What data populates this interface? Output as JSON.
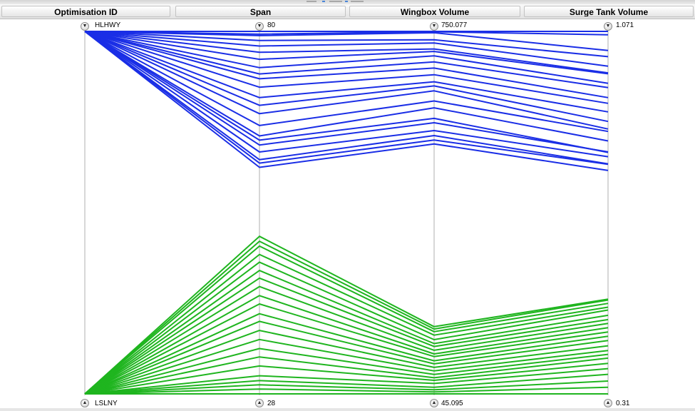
{
  "headers": [
    "Optimisation ID",
    "Span",
    "Wingbox Volume",
    "Surge Tank Volume"
  ],
  "axes": [
    {
      "top_label": "HLHWY",
      "bottom_label": "LSLNY"
    },
    {
      "top_label": "80",
      "bottom_label": "28"
    },
    {
      "top_label": "750.077",
      "bottom_label": "45.095"
    },
    {
      "top_label": "1.071",
      "bottom_label": "0.31"
    }
  ],
  "icons": {
    "top": "chevron-down-icon",
    "bottom": "chevron-up-icon"
  },
  "colors": {
    "top_group": "#1a2ee6",
    "bottom_group": "#1fb51f"
  },
  "chart_data": {
    "type": "parallel-coordinates",
    "dimensions": [
      {
        "name": "Optimisation ID",
        "categories": [
          "LSLNY",
          "HLHWY"
        ]
      },
      {
        "name": "Span",
        "range": [
          28,
          80
        ]
      },
      {
        "name": "Wingbox Volume",
        "range": [
          45.095,
          750.077
        ]
      },
      {
        "name": "Surge Tank Volume",
        "range": [
          0.31,
          1.071
        ]
      }
    ],
    "series": [
      {
        "category": "HLHWY",
        "color": "#1a2ee6",
        "rows": [
          [
            80,
            750.08,
            1.071
          ],
          [
            79.6,
            749.4,
            1.064
          ],
          [
            79.4,
            747.5,
            1.031
          ],
          [
            78.7,
            733.8,
            1.018
          ],
          [
            77.9,
            727.6,
            0.998
          ],
          [
            77.0,
            715.9,
            0.984
          ],
          [
            76.0,
            711.1,
            0.982
          ],
          [
            74.8,
            702.6,
            0.962
          ],
          [
            73.9,
            690.7,
            0.953
          ],
          [
            73.2,
            678.7,
            0.932
          ],
          [
            72.0,
            665.9,
            0.92
          ],
          [
            70.5,
            652.1,
            0.902
          ],
          [
            69.4,
            644.0,
            0.882
          ],
          [
            68.2,
            634.5,
            0.866
          ],
          [
            66.5,
            614.8,
            0.861
          ],
          [
            65.0,
            601.5,
            0.841
          ],
          [
            64.4,
            580.9,
            0.817
          ],
          [
            63.7,
            572.4,
            0.818
          ],
          [
            62.7,
            557.2,
            0.808
          ],
          [
            61.6,
            547.4,
            0.793
          ],
          [
            61.1,
            538.9,
            0.792
          ],
          [
            60.5,
            531.2,
            0.779
          ]
        ]
      },
      {
        "category": "LSLNY",
        "color": "#1fb51f",
        "rows": [
          [
            50.6,
            175.8,
            0.509
          ],
          [
            49.9,
            171.2,
            0.507
          ],
          [
            49.2,
            166.1,
            0.5
          ],
          [
            48.0,
            159.3,
            0.492
          ],
          [
            46.9,
            150.5,
            0.486
          ],
          [
            45.7,
            142.9,
            0.475
          ],
          [
            44.6,
            137.2,
            0.466
          ],
          [
            43.4,
            129.9,
            0.458
          ],
          [
            42.1,
            122.8,
            0.449
          ],
          [
            40.9,
            117.7,
            0.44
          ],
          [
            39.5,
            109.5,
            0.431
          ],
          [
            38.4,
            103.5,
            0.422
          ],
          [
            37.1,
            96.6,
            0.411
          ],
          [
            35.8,
            89.8,
            0.401
          ],
          [
            34.5,
            83.0,
            0.393
          ],
          [
            33.3,
            76.5,
            0.385
          ],
          [
            32.0,
            71.5,
            0.374
          ],
          [
            30.6,
            65.3,
            0.363
          ],
          [
            29.9,
            58.0,
            0.351
          ],
          [
            29.3,
            53.0,
            0.337
          ],
          [
            28.7,
            48.8,
            0.324
          ],
          [
            28.0,
            45.1,
            0.31
          ]
        ]
      }
    ]
  }
}
